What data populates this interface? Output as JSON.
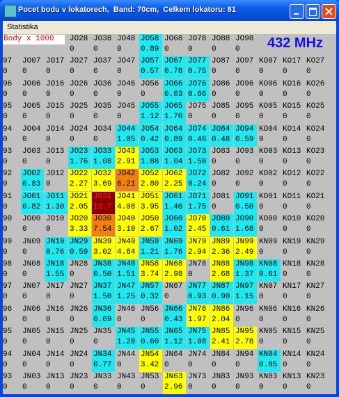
{
  "window": {
    "title": "Pocet bodu v lokatorech,  Band: 70cm,  Celkem lokatoru: 81",
    "menu": "Statistika"
  },
  "header": {
    "legend": "Body x 1000",
    "band": "432 MHz"
  },
  "top_row": [
    {
      "l": "JO28",
      "v": "0"
    },
    {
      "l": "JO38",
      "v": "0"
    },
    {
      "l": "JO48",
      "v": "0"
    },
    {
      "l": "JO58",
      "v": "0.89",
      "c": "#20e8f0"
    },
    {
      "l": "JO68",
      "v": "0"
    },
    {
      "l": "JO78",
      "v": "0"
    },
    {
      "l": "JO88",
      "v": "0"
    },
    {
      "l": "JO98",
      "v": "0"
    }
  ],
  "grid": [
    [
      {
        "l": "97",
        "v": "0"
      },
      {
        "l": "JO07",
        "v": "0"
      },
      {
        "l": "JO17",
        "v": "0"
      },
      {
        "l": "JO27",
        "v": "0"
      },
      {
        "l": "JO37",
        "v": "0"
      },
      {
        "l": "JO47",
        "v": "0"
      },
      {
        "l": "JO57",
        "v": "0.57",
        "c": "#20e8f0"
      },
      {
        "l": "JO67",
        "v": "0.78",
        "c": "#20e8f0"
      },
      {
        "l": "JO77",
        "v": "0.75",
        "c": "#20e8f0"
      },
      {
        "l": "JO87",
        "v": "0"
      },
      {
        "l": "JO97",
        "v": "0"
      },
      {
        "l": "KO07",
        "v": "0"
      },
      {
        "l": "KO17",
        "v": "0"
      },
      {
        "l": "KO27",
        "v": "0"
      }
    ],
    [
      {
        "l": "96",
        "v": "0"
      },
      {
        "l": "JO06",
        "v": "0"
      },
      {
        "l": "JO16",
        "v": "0"
      },
      {
        "l": "JO26",
        "v": "0"
      },
      {
        "l": "JO36",
        "v": "0"
      },
      {
        "l": "JO46",
        "v": "0"
      },
      {
        "l": "JO56",
        "v": "0"
      },
      {
        "l": "JO66",
        "v": "0.63",
        "c": "#20e8f0"
      },
      {
        "l": "JO76",
        "v": "0.66",
        "c": "#20e8f0"
      },
      {
        "l": "JO86",
        "v": "0"
      },
      {
        "l": "JO96",
        "v": "0"
      },
      {
        "l": "KO06",
        "v": "0"
      },
      {
        "l": "KO16",
        "v": "0"
      },
      {
        "l": "KO26",
        "v": "0"
      }
    ],
    [
      {
        "l": "95",
        "v": "0"
      },
      {
        "l": "JO05",
        "v": "0"
      },
      {
        "l": "JO15",
        "v": "0"
      },
      {
        "l": "JO25",
        "v": "0"
      },
      {
        "l": "JO35",
        "v": "0"
      },
      {
        "l": "JO45",
        "v": "0"
      },
      {
        "l": "JO55",
        "v": "1.12",
        "c": "#20e8f0"
      },
      {
        "l": "JO65",
        "v": "1.70",
        "c": "#20e8f0"
      },
      {
        "l": "JO75",
        "v": "0"
      },
      {
        "l": "JO85",
        "v": "0"
      },
      {
        "l": "JO95",
        "v": "0"
      },
      {
        "l": "KO05",
        "v": "0"
      },
      {
        "l": "KO15",
        "v": "0"
      },
      {
        "l": "KO25",
        "v": "0"
      }
    ],
    [
      {
        "l": "94",
        "v": "0"
      },
      {
        "l": "JO04",
        "v": "0"
      },
      {
        "l": "JO14",
        "v": "0"
      },
      {
        "l": "JO24",
        "v": "0"
      },
      {
        "l": "JO34",
        "v": "0"
      },
      {
        "l": "JO44",
        "v": "1.05",
        "c": "#20e8f0"
      },
      {
        "l": "JO54",
        "v": "0.42",
        "c": "#20e8f0"
      },
      {
        "l": "JO64",
        "v": "0.89",
        "c": "#20e8f0"
      },
      {
        "l": "JO74",
        "v": "0.46",
        "c": "#20e8f0"
      },
      {
        "l": "JO84",
        "v": "0.48",
        "c": "#20e8f0"
      },
      {
        "l": "JO94",
        "v": "0.59",
        "c": "#20e8f0"
      },
      {
        "l": "KO04",
        "v": "0"
      },
      {
        "l": "KO14",
        "v": "0"
      },
      {
        "l": "KO24",
        "v": "0"
      }
    ],
    [
      {
        "l": "93",
        "v": "0"
      },
      {
        "l": "JO03",
        "v": "0"
      },
      {
        "l": "JO13",
        "v": "0"
      },
      {
        "l": "JO23",
        "v": "1.76",
        "c": "#20e8f0"
      },
      {
        "l": "JO33",
        "v": "1.08",
        "c": "#20e8f0"
      },
      {
        "l": "JO43",
        "v": "2.91",
        "c": "#ffff00"
      },
      {
        "l": "JO53",
        "v": "1.88",
        "c": "#20e8f0"
      },
      {
        "l": "JO63",
        "v": "1.04",
        "c": "#20e8f0"
      },
      {
        "l": "JO73",
        "v": "1.50",
        "c": "#20e8f0"
      },
      {
        "l": "JO83",
        "v": "0"
      },
      {
        "l": "JO93",
        "v": "0"
      },
      {
        "l": "KO03",
        "v": "0"
      },
      {
        "l": "KO13",
        "v": "0"
      },
      {
        "l": "KO23",
        "v": "0"
      }
    ],
    [
      {
        "l": "92",
        "v": "0"
      },
      {
        "l": "JO02",
        "v": "0.83",
        "c": "#20e8f0"
      },
      {
        "l": "JO12",
        "v": "0"
      },
      {
        "l": "JO22",
        "v": "2.27",
        "c": "#ffff00"
      },
      {
        "l": "JO32",
        "v": "3.69",
        "c": "#ffff00"
      },
      {
        "l": "JO42",
        "v": "6.21",
        "c": "#f08010"
      },
      {
        "l": "JO52",
        "v": "2.80",
        "c": "#ffff00"
      },
      {
        "l": "JO62",
        "v": "2.25",
        "c": "#ffff00"
      },
      {
        "l": "JO72",
        "v": "0.24",
        "c": "#20e8f0"
      },
      {
        "l": "JO82",
        "v": "0"
      },
      {
        "l": "JO92",
        "v": "0"
      },
      {
        "l": "KO02",
        "v": "0"
      },
      {
        "l": "KO12",
        "v": "0"
      },
      {
        "l": "KO22",
        "v": "0"
      }
    ],
    [
      {
        "l": "91",
        "v": "0"
      },
      {
        "l": "JO01",
        "v": "0.82",
        "c": "#20e8f0"
      },
      {
        "l": "JO11",
        "v": "1.30",
        "c": "#20e8f0"
      },
      {
        "l": "JO21",
        "v": "2.05",
        "c": "#ffff00"
      },
      {
        "l": "JO31",
        "v": "12.7",
        "c": "#8b0000",
        "t": "#ff2020"
      },
      {
        "l": "JO41",
        "v": "4.08",
        "c": "#ffff00"
      },
      {
        "l": "JO51",
        "v": "3.95",
        "c": "#ffff00"
      },
      {
        "l": "JO61",
        "v": "1.40",
        "c": "#20e8f0"
      },
      {
        "l": "JO71",
        "v": "1.75",
        "c": "#20e8f0"
      },
      {
        "l": "JO81",
        "v": "0"
      },
      {
        "l": "JO91",
        "v": "0.50",
        "c": "#20e8f0"
      },
      {
        "l": "KO01",
        "v": "0"
      },
      {
        "l": "KO11",
        "v": "0"
      },
      {
        "l": "KO21",
        "v": "0"
      }
    ],
    [
      {
        "l": "90",
        "v": "0"
      },
      {
        "l": "JO00",
        "v": "0"
      },
      {
        "l": "JO10",
        "v": "0"
      },
      {
        "l": "JO20",
        "v": "3.33",
        "c": "#ffff00"
      },
      {
        "l": "JO30",
        "v": "7.54",
        "c": "#f08010"
      },
      {
        "l": "JO40",
        "v": "3.10",
        "c": "#ffff00"
      },
      {
        "l": "JO50",
        "v": "2.67",
        "c": "#ffff00"
      },
      {
        "l": "JO60",
        "v": "1.02",
        "c": "#20e8f0"
      },
      {
        "l": "JO70",
        "v": "2.45",
        "c": "#ffff00"
      },
      {
        "l": "JO80",
        "v": "0.61",
        "c": "#20e8f0"
      },
      {
        "l": "JO90",
        "v": "1.68",
        "c": "#20e8f0"
      },
      {
        "l": "KO00",
        "v": "0"
      },
      {
        "l": "KO10",
        "v": "0"
      },
      {
        "l": "KO20",
        "v": "0"
      }
    ],
    [
      {
        "l": "99",
        "v": "0"
      },
      {
        "l": "JN09",
        "v": "0"
      },
      {
        "l": "JN19",
        "v": "0.76",
        "c": "#20e8f0"
      },
      {
        "l": "JN29",
        "v": "0.59",
        "c": "#20e8f0"
      },
      {
        "l": "JN39",
        "v": "3.02",
        "c": "#ffff00"
      },
      {
        "l": "JN49",
        "v": "4.84",
        "c": "#ffff00"
      },
      {
        "l": "JN59",
        "v": "1.21",
        "c": "#20e8f0"
      },
      {
        "l": "JN69",
        "v": "1.76",
        "c": "#20e8f0"
      },
      {
        "l": "JN79",
        "v": "2.94",
        "c": "#ffff00"
      },
      {
        "l": "JN89",
        "v": "2.36",
        "c": "#ffff00"
      },
      {
        "l": "JN99",
        "v": "2.49",
        "c": "#ffff00"
      },
      {
        "l": "KN09",
        "v": "0"
      },
      {
        "l": "KN19",
        "v": "0"
      },
      {
        "l": "KN29",
        "v": "0"
      }
    ],
    [
      {
        "l": "98",
        "v": "0"
      },
      {
        "l": "JN08",
        "v": "0"
      },
      {
        "l": "JN18",
        "v": "1.55",
        "c": "#20e8f0"
      },
      {
        "l": "JN28",
        "v": "0"
      },
      {
        "l": "JN38",
        "v": "0.50",
        "c": "#20e8f0"
      },
      {
        "l": "JN48",
        "v": "1.51",
        "c": "#20e8f0"
      },
      {
        "l": "JN58",
        "v": "3.74",
        "c": "#ffff00"
      },
      {
        "l": "JN68",
        "v": "2.98",
        "c": "#ffff00"
      },
      {
        "l": "JN78",
        "v": "0"
      },
      {
        "l": "JN88",
        "v": "2.68",
        "c": "#ffff00"
      },
      {
        "l": "JN98",
        "v": "1.37",
        "c": "#20e8f0"
      },
      {
        "l": "KN08",
        "v": "0.61",
        "c": "#20e8f0"
      },
      {
        "l": "KN18",
        "v": "0"
      },
      {
        "l": "KN28",
        "v": "0"
      }
    ],
    [
      {
        "l": "97",
        "v": "0"
      },
      {
        "l": "JN07",
        "v": "0"
      },
      {
        "l": "JN17",
        "v": "0"
      },
      {
        "l": "JN27",
        "v": "0"
      },
      {
        "l": "JN37",
        "v": "1.50",
        "c": "#20e8f0"
      },
      {
        "l": "JN47",
        "v": "1.25",
        "c": "#20e8f0"
      },
      {
        "l": "JN57",
        "v": "0.32",
        "c": "#20e8f0"
      },
      {
        "l": "JN67",
        "v": "0"
      },
      {
        "l": "JN77",
        "v": "0.93",
        "c": "#20e8f0"
      },
      {
        "l": "JN87",
        "v": "0.90",
        "c": "#20e8f0"
      },
      {
        "l": "JN97",
        "v": "1.15",
        "c": "#20e8f0"
      },
      {
        "l": "KN07",
        "v": "0"
      },
      {
        "l": "KN17",
        "v": "0"
      },
      {
        "l": "KN27",
        "v": "0"
      }
    ],
    [
      {
        "l": "96",
        "v": "0"
      },
      {
        "l": "JN06",
        "v": "0"
      },
      {
        "l": "JN16",
        "v": "0"
      },
      {
        "l": "JN26",
        "v": "0"
      },
      {
        "l": "JN36",
        "v": "0.69",
        "c": "#20e8f0"
      },
      {
        "l": "JN46",
        "v": "0"
      },
      {
        "l": "JN56",
        "v": "0"
      },
      {
        "l": "JN66",
        "v": "0.43",
        "c": "#20e8f0"
      },
      {
        "l": "JN76",
        "v": "1.97",
        "c": "#ffff00"
      },
      {
        "l": "JN86",
        "v": "2.04",
        "c": "#ffff00"
      },
      {
        "l": "JN96",
        "v": "0"
      },
      {
        "l": "KN06",
        "v": "0"
      },
      {
        "l": "KN16",
        "v": "0"
      },
      {
        "l": "KN26",
        "v": "0"
      }
    ],
    [
      {
        "l": "95",
        "v": "0"
      },
      {
        "l": "JN05",
        "v": "0"
      },
      {
        "l": "JN15",
        "v": "0"
      },
      {
        "l": "JN25",
        "v": "0"
      },
      {
        "l": "JN35",
        "v": "0"
      },
      {
        "l": "JN45",
        "v": "1.28",
        "c": "#20e8f0"
      },
      {
        "l": "JN55",
        "v": "0.60",
        "c": "#20e8f0"
      },
      {
        "l": "JN65",
        "v": "1.12",
        "c": "#20e8f0"
      },
      {
        "l": "JN75",
        "v": "1.08",
        "c": "#20e8f0"
      },
      {
        "l": "JN85",
        "v": "2.41",
        "c": "#ffff00"
      },
      {
        "l": "JN95",
        "v": "2.78",
        "c": "#ffff00"
      },
      {
        "l": "KN05",
        "v": "0"
      },
      {
        "l": "KN15",
        "v": "0"
      },
      {
        "l": "KN25",
        "v": "0"
      }
    ],
    [
      {
        "l": "94",
        "v": "0"
      },
      {
        "l": "JN04",
        "v": "0"
      },
      {
        "l": "JN14",
        "v": "0"
      },
      {
        "l": "JN24",
        "v": "0"
      },
      {
        "l": "JN34",
        "v": "0.77",
        "c": "#20e8f0"
      },
      {
        "l": "JN44",
        "v": "0"
      },
      {
        "l": "JN54",
        "v": "3.42",
        "c": "#ffff00"
      },
      {
        "l": "JN64",
        "v": "0"
      },
      {
        "l": "JN74",
        "v": "0"
      },
      {
        "l": "JN84",
        "v": "0"
      },
      {
        "l": "JN94",
        "v": "0"
      },
      {
        "l": "KN04",
        "v": "0.85",
        "c": "#20e8f0"
      },
      {
        "l": "KN14",
        "v": "0"
      },
      {
        "l": "KN24",
        "v": "0"
      }
    ],
    [
      {
        "l": "93",
        "v": "0"
      },
      {
        "l": "JN03",
        "v": "0"
      },
      {
        "l": "JN13",
        "v": "0"
      },
      {
        "l": "JN23",
        "v": "0"
      },
      {
        "l": "JN33",
        "v": "0"
      },
      {
        "l": "JN43",
        "v": "0"
      },
      {
        "l": "JN53",
        "v": "0"
      },
      {
        "l": "JN63",
        "v": "2.96",
        "c": "#ffff00"
      },
      {
        "l": "JN73",
        "v": "0"
      },
      {
        "l": "JN83",
        "v": "0"
      },
      {
        "l": "JN93",
        "v": "0"
      },
      {
        "l": "KN03",
        "v": "0"
      },
      {
        "l": "KN13",
        "v": "0"
      },
      {
        "l": "KN23",
        "v": "0"
      }
    ]
  ]
}
